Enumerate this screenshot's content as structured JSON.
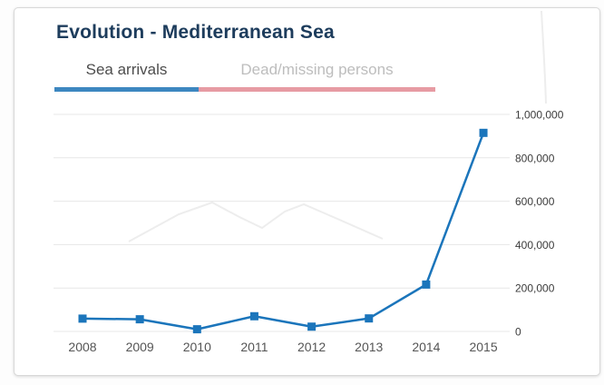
{
  "card": {
    "title": "Evolution - Mediterranean Sea",
    "tabs": [
      {
        "label": "Sea arrivals",
        "active": true
      },
      {
        "label": "Dead/missing persons",
        "active": false
      }
    ]
  },
  "colors": {
    "title": "#1d3c5c",
    "tab_active_text": "#4d4d4d",
    "tab_inactive_text": "#bdbdbd",
    "tab_underline_active": "#3d87c0",
    "tab_underline_inactive": "#e79ba3",
    "line": "#1b75bb",
    "marker": "#1b75bb",
    "gridline": "#e7e7e7",
    "y_label": "#3c3c3c",
    "x_label": "#555555",
    "watermark": "#ededed",
    "card_border": "#d8d8d8",
    "card_background": "#ffffff"
  },
  "chart_data": {
    "type": "line",
    "title": "Evolution - Mediterranean Sea",
    "categories": [
      "2008",
      "2009",
      "2010",
      "2011",
      "2012",
      "2013",
      "2014",
      "2015"
    ],
    "series": [
      {
        "name": "Sea arrivals",
        "values": [
          59000,
          56000,
          10000,
          70000,
          22000,
          60000,
          216000,
          915000
        ]
      }
    ],
    "xlabel": "",
    "ylabel": "",
    "ylim": [
      0,
      1000000
    ],
    "ytick_values": [
      0,
      200000,
      400000,
      600000,
      800000,
      1000000
    ],
    "ytick_labels": [
      "0",
      "200,000",
      "400,000",
      "600,000",
      "800,000",
      "1,000,000"
    ],
    "grid": true,
    "y_axis_position": "right",
    "marker": "square",
    "legend": "none"
  }
}
